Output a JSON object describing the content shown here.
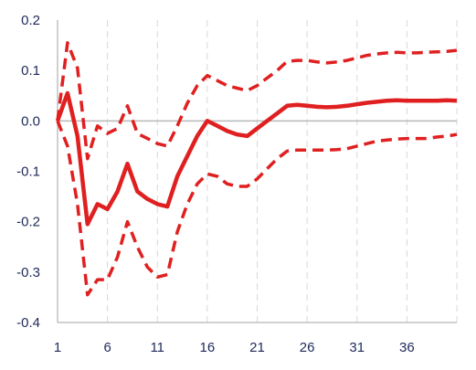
{
  "chart_data": {
    "type": "line",
    "title": "",
    "xlabel": "",
    "ylabel": "",
    "xlim": [
      1,
      41
    ],
    "ylim": [
      -0.4,
      0.2
    ],
    "x_ticks": [
      1,
      6,
      11,
      16,
      21,
      26,
      31,
      36
    ],
    "x_tick_labels": [
      "1",
      "6",
      "11",
      "16",
      "21",
      "26",
      "31",
      "36"
    ],
    "y_ticks": [
      0.2,
      0.1,
      0.0,
      -0.1,
      -0.2,
      -0.3,
      -0.4
    ],
    "y_tick_labels": [
      "0.2",
      "0.1",
      "0.0",
      "-0.1",
      "-0.2",
      "-0.3",
      "-0.4"
    ],
    "grid": "vertical dashed",
    "line_color": "#e02020",
    "x": [
      1,
      2,
      3,
      4,
      5,
      6,
      7,
      8,
      9,
      10,
      11,
      12,
      13,
      14,
      15,
      16,
      17,
      18,
      19,
      20,
      21,
      22,
      23,
      24,
      25,
      26,
      27,
      28,
      29,
      30,
      31,
      32,
      33,
      34,
      35,
      36,
      37,
      38,
      39,
      40,
      41
    ],
    "series": [
      {
        "style": "solid",
        "values": [
          0.0,
          0.055,
          -0.03,
          -0.205,
          -0.165,
          -0.175,
          -0.14,
          -0.085,
          -0.14,
          -0.155,
          -0.165,
          -0.17,
          -0.11,
          -0.07,
          -0.03,
          0.0,
          -0.01,
          -0.02,
          -0.027,
          -0.03,
          -0.015,
          0.0,
          0.015,
          0.03,
          0.032,
          0.03,
          0.028,
          0.027,
          0.028,
          0.03,
          0.033,
          0.036,
          0.038,
          0.04,
          0.041,
          0.04,
          0.04,
          0.04,
          0.04,
          0.041,
          0.04
        ]
      },
      {
        "style": "dashed",
        "values": [
          0.0,
          0.155,
          0.105,
          -0.075,
          -0.01,
          -0.025,
          -0.015,
          0.03,
          -0.025,
          -0.035,
          -0.045,
          -0.05,
          -0.01,
          0.035,
          0.07,
          0.09,
          0.08,
          0.07,
          0.065,
          0.06,
          0.07,
          0.085,
          0.1,
          0.118,
          0.12,
          0.12,
          0.117,
          0.115,
          0.117,
          0.12,
          0.125,
          0.13,
          0.133,
          0.135,
          0.136,
          0.135,
          0.135,
          0.136,
          0.137,
          0.138,
          0.14
        ]
      },
      {
        "style": "dashed",
        "values": [
          0.0,
          -0.05,
          -0.165,
          -0.345,
          -0.315,
          -0.315,
          -0.27,
          -0.2,
          -0.25,
          -0.29,
          -0.31,
          -0.305,
          -0.22,
          -0.165,
          -0.125,
          -0.105,
          -0.11,
          -0.125,
          -0.13,
          -0.13,
          -0.115,
          -0.095,
          -0.075,
          -0.06,
          -0.058,
          -0.058,
          -0.058,
          -0.058,
          -0.057,
          -0.055,
          -0.05,
          -0.045,
          -0.04,
          -0.038,
          -0.036,
          -0.035,
          -0.035,
          -0.035,
          -0.032,
          -0.03,
          -0.027
        ]
      }
    ]
  }
}
